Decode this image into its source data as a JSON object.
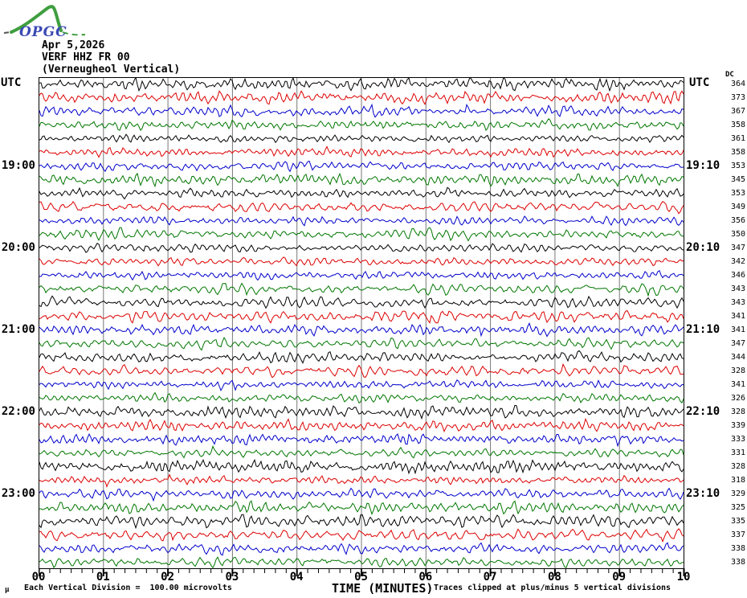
{
  "logo": {
    "text": "OPGC",
    "green": "#3f9e3f",
    "blue": "#3a49b4"
  },
  "header": {
    "date": "Apr 5,2026",
    "station": "VERF HHZ FR 00",
    "station_name": "(Verneugheol Vertical)"
  },
  "axis": {
    "left_title": "UTC",
    "right_title": "UTC",
    "dc_column_label": "DC"
  },
  "footer": {
    "mu_mark": "µ",
    "division_note": "Each Vertical Division =  100.00 microvolts",
    "axis_title": "TIME (MINUTES)",
    "clip_note": "Traces clipped at plus/minus 5 vertical divisions"
  },
  "chart_data": {
    "type": "line",
    "subtype": "helicorder-seismogram",
    "title": "VERF HHZ FR 00 (Verneugheol Vertical) Apr 5,2026",
    "xlabel": "TIME (MINUTES)",
    "x_range_minutes": [
      0,
      10
    ],
    "x_tick_labels": [
      "00",
      "01",
      "02",
      "03",
      "04",
      "05",
      "06",
      "07",
      "08",
      "09",
      "10"
    ],
    "minor_tick_subdivisions_per_minute": 6,
    "grid": "vertical gray line at each minute",
    "minutes_per_line": 10,
    "colors": {
      "black": "#000000",
      "red": "#dd0000",
      "blue": "#0000cc",
      "green": "#007700",
      "grid": "#777777",
      "border": "#000000"
    },
    "color_cycle": [
      "black",
      "red",
      "blue",
      "green"
    ],
    "traces": [
      {
        "start_utc": "18:00",
        "color": "black",
        "dc": 364,
        "label_left": null,
        "label_right": null
      },
      {
        "start_utc": "18:10",
        "color": "red",
        "dc": 373,
        "label_left": null,
        "label_right": null
      },
      {
        "start_utc": "18:20",
        "color": "blue",
        "dc": 367,
        "label_left": null,
        "label_right": null
      },
      {
        "start_utc": "18:30",
        "color": "green",
        "dc": 358,
        "label_left": null,
        "label_right": null
      },
      {
        "start_utc": "18:40",
        "color": "black",
        "dc": 361,
        "label_left": null,
        "label_right": null
      },
      {
        "start_utc": "18:50",
        "color": "red",
        "dc": 358,
        "label_left": null,
        "label_right": null
      },
      {
        "start_utc": "19:00",
        "color": "blue",
        "dc": 353,
        "label_left": "19:00",
        "label_right": "19:10"
      },
      {
        "start_utc": "19:10",
        "color": "green",
        "dc": 345,
        "label_left": null,
        "label_right": null
      },
      {
        "start_utc": "19:20",
        "color": "black",
        "dc": 353,
        "label_left": null,
        "label_right": null
      },
      {
        "start_utc": "19:30",
        "color": "red",
        "dc": 349,
        "label_left": null,
        "label_right": null
      },
      {
        "start_utc": "19:40",
        "color": "blue",
        "dc": 356,
        "label_left": null,
        "label_right": null
      },
      {
        "start_utc": "19:50",
        "color": "green",
        "dc": 350,
        "label_left": null,
        "label_right": null
      },
      {
        "start_utc": "20:00",
        "color": "black",
        "dc": 347,
        "label_left": "20:00",
        "label_right": "20:10"
      },
      {
        "start_utc": "20:10",
        "color": "red",
        "dc": 342,
        "label_left": null,
        "label_right": null
      },
      {
        "start_utc": "20:20",
        "color": "blue",
        "dc": 346,
        "label_left": null,
        "label_right": null
      },
      {
        "start_utc": "20:30",
        "color": "green",
        "dc": 343,
        "label_left": null,
        "label_right": null
      },
      {
        "start_utc": "20:40",
        "color": "black",
        "dc": 343,
        "label_left": null,
        "label_right": null
      },
      {
        "start_utc": "20:50",
        "color": "red",
        "dc": 341,
        "label_left": null,
        "label_right": null
      },
      {
        "start_utc": "21:00",
        "color": "blue",
        "dc": 341,
        "label_left": "21:00",
        "label_right": "21:10"
      },
      {
        "start_utc": "21:10",
        "color": "green",
        "dc": 347,
        "label_left": null,
        "label_right": null
      },
      {
        "start_utc": "21:20",
        "color": "black",
        "dc": 344,
        "label_left": null,
        "label_right": null
      },
      {
        "start_utc": "21:30",
        "color": "red",
        "dc": 328,
        "label_left": null,
        "label_right": null
      },
      {
        "start_utc": "21:40",
        "color": "blue",
        "dc": 341,
        "label_left": null,
        "label_right": null
      },
      {
        "start_utc": "21:50",
        "color": "green",
        "dc": 326,
        "label_left": null,
        "label_right": null
      },
      {
        "start_utc": "22:00",
        "color": "black",
        "dc": 328,
        "label_left": "22:00",
        "label_right": "22:10"
      },
      {
        "start_utc": "22:10",
        "color": "red",
        "dc": 339,
        "label_left": null,
        "label_right": null
      },
      {
        "start_utc": "22:20",
        "color": "blue",
        "dc": 333,
        "label_left": null,
        "label_right": null
      },
      {
        "start_utc": "22:30",
        "color": "green",
        "dc": 331,
        "label_left": null,
        "label_right": null
      },
      {
        "start_utc": "22:40",
        "color": "black",
        "dc": 328,
        "label_left": null,
        "label_right": null
      },
      {
        "start_utc": "22:50",
        "color": "red",
        "dc": 318,
        "label_left": null,
        "label_right": null
      },
      {
        "start_utc": "23:00",
        "color": "blue",
        "dc": 329,
        "label_left": "23:00",
        "label_right": "23:10"
      },
      {
        "start_utc": "23:10",
        "color": "green",
        "dc": 325,
        "label_left": null,
        "label_right": null
      },
      {
        "start_utc": "23:20",
        "color": "black",
        "dc": 335,
        "label_left": null,
        "label_right": null
      },
      {
        "start_utc": "23:30",
        "color": "red",
        "dc": 337,
        "label_left": null,
        "label_right": null
      },
      {
        "start_utc": "23:40",
        "color": "blue",
        "dc": 338,
        "label_left": null,
        "label_right": null
      },
      {
        "start_utc": "23:50",
        "color": "green",
        "dc": 338,
        "label_left": null,
        "label_right": null
      }
    ]
  }
}
